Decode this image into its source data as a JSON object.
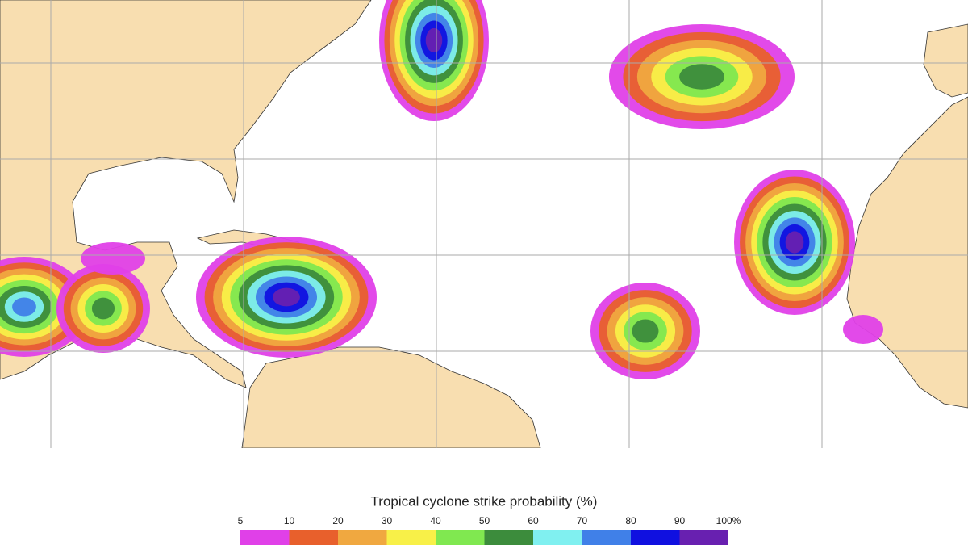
{
  "legend": {
    "title": "Tropical cyclone strike probability (%)",
    "ticks": [
      5,
      10,
      20,
      30,
      40,
      50,
      60,
      70,
      80,
      90,
      {
        "value": 100,
        "label": "100%"
      }
    ],
    "colors": [
      "#e040e8",
      "#e8602c",
      "#f0a840",
      "#f8f048",
      "#80e850",
      "#3c8c3c",
      "#80f0f0",
      "#4080e8",
      "#1010e0",
      "#6820b0"
    ]
  }
}
